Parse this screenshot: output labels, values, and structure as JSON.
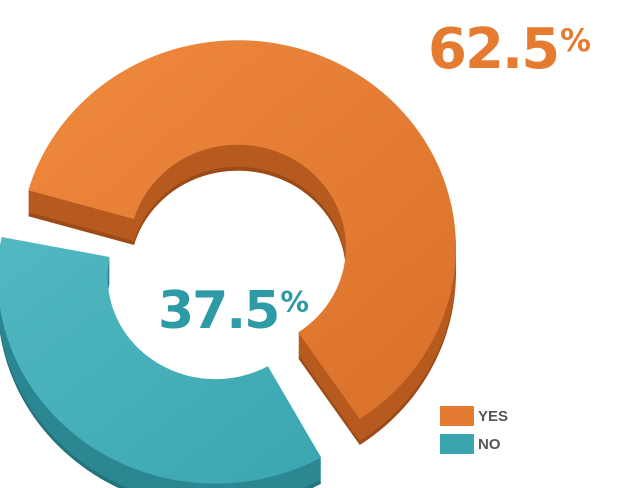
{
  "chart_data": {
    "type": "pie",
    "categories": [
      "YES",
      "NO"
    ],
    "values": [
      62.5,
      37.5
    ],
    "labels": [
      "62.5",
      "37.5"
    ],
    "unit": "%",
    "colors": [
      "#e57b30",
      "#3aa6b0"
    ],
    "style": "3d-donut, exploded",
    "legend_position": "bottom-right"
  }
}
